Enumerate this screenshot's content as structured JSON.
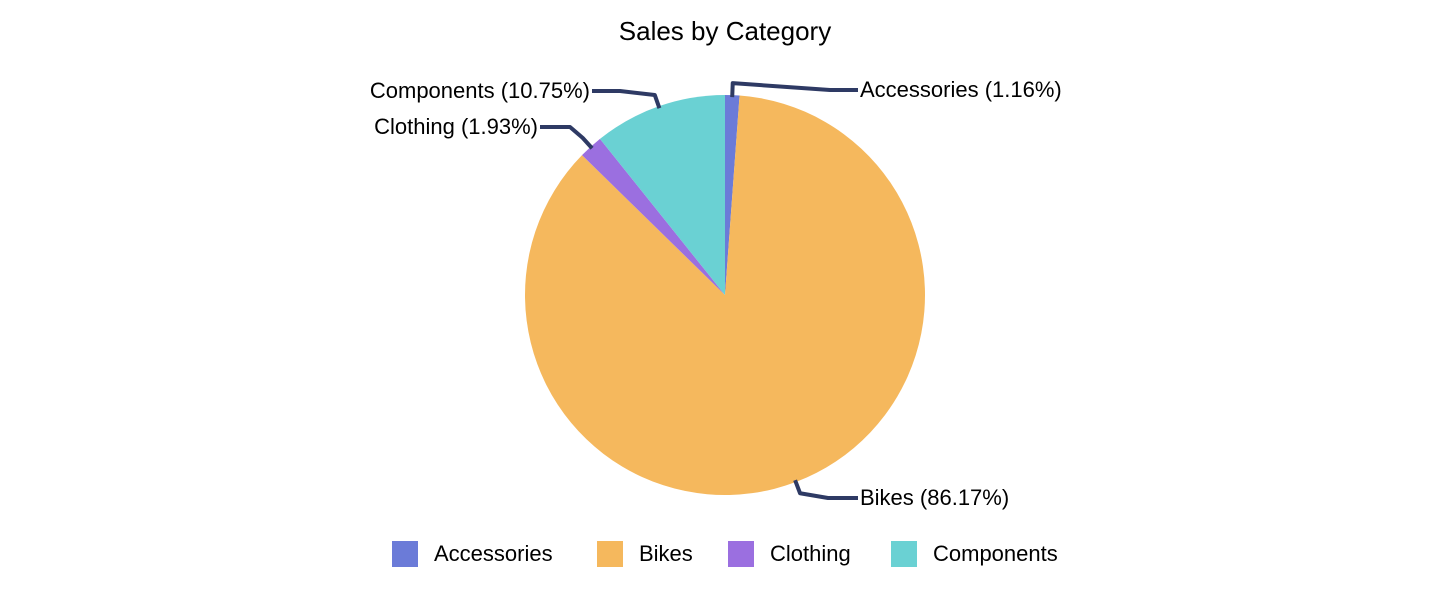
{
  "chart_data": {
    "type": "pie",
    "title": "Sales by Category",
    "categories": [
      "Accessories",
      "Bikes",
      "Clothing",
      "Components"
    ],
    "values": [
      1.16,
      86.17,
      1.93,
      10.75
    ],
    "value_labels": [
      "Accessories (1.16%)",
      "Bikes (86.17%)",
      "Clothing (1.93%)",
      "Components (10.75%)"
    ],
    "colors": [
      "#6b7bd8",
      "#f5b85d",
      "#9b6fe0",
      "#6ad1d3"
    ],
    "legend": "bottom"
  }
}
